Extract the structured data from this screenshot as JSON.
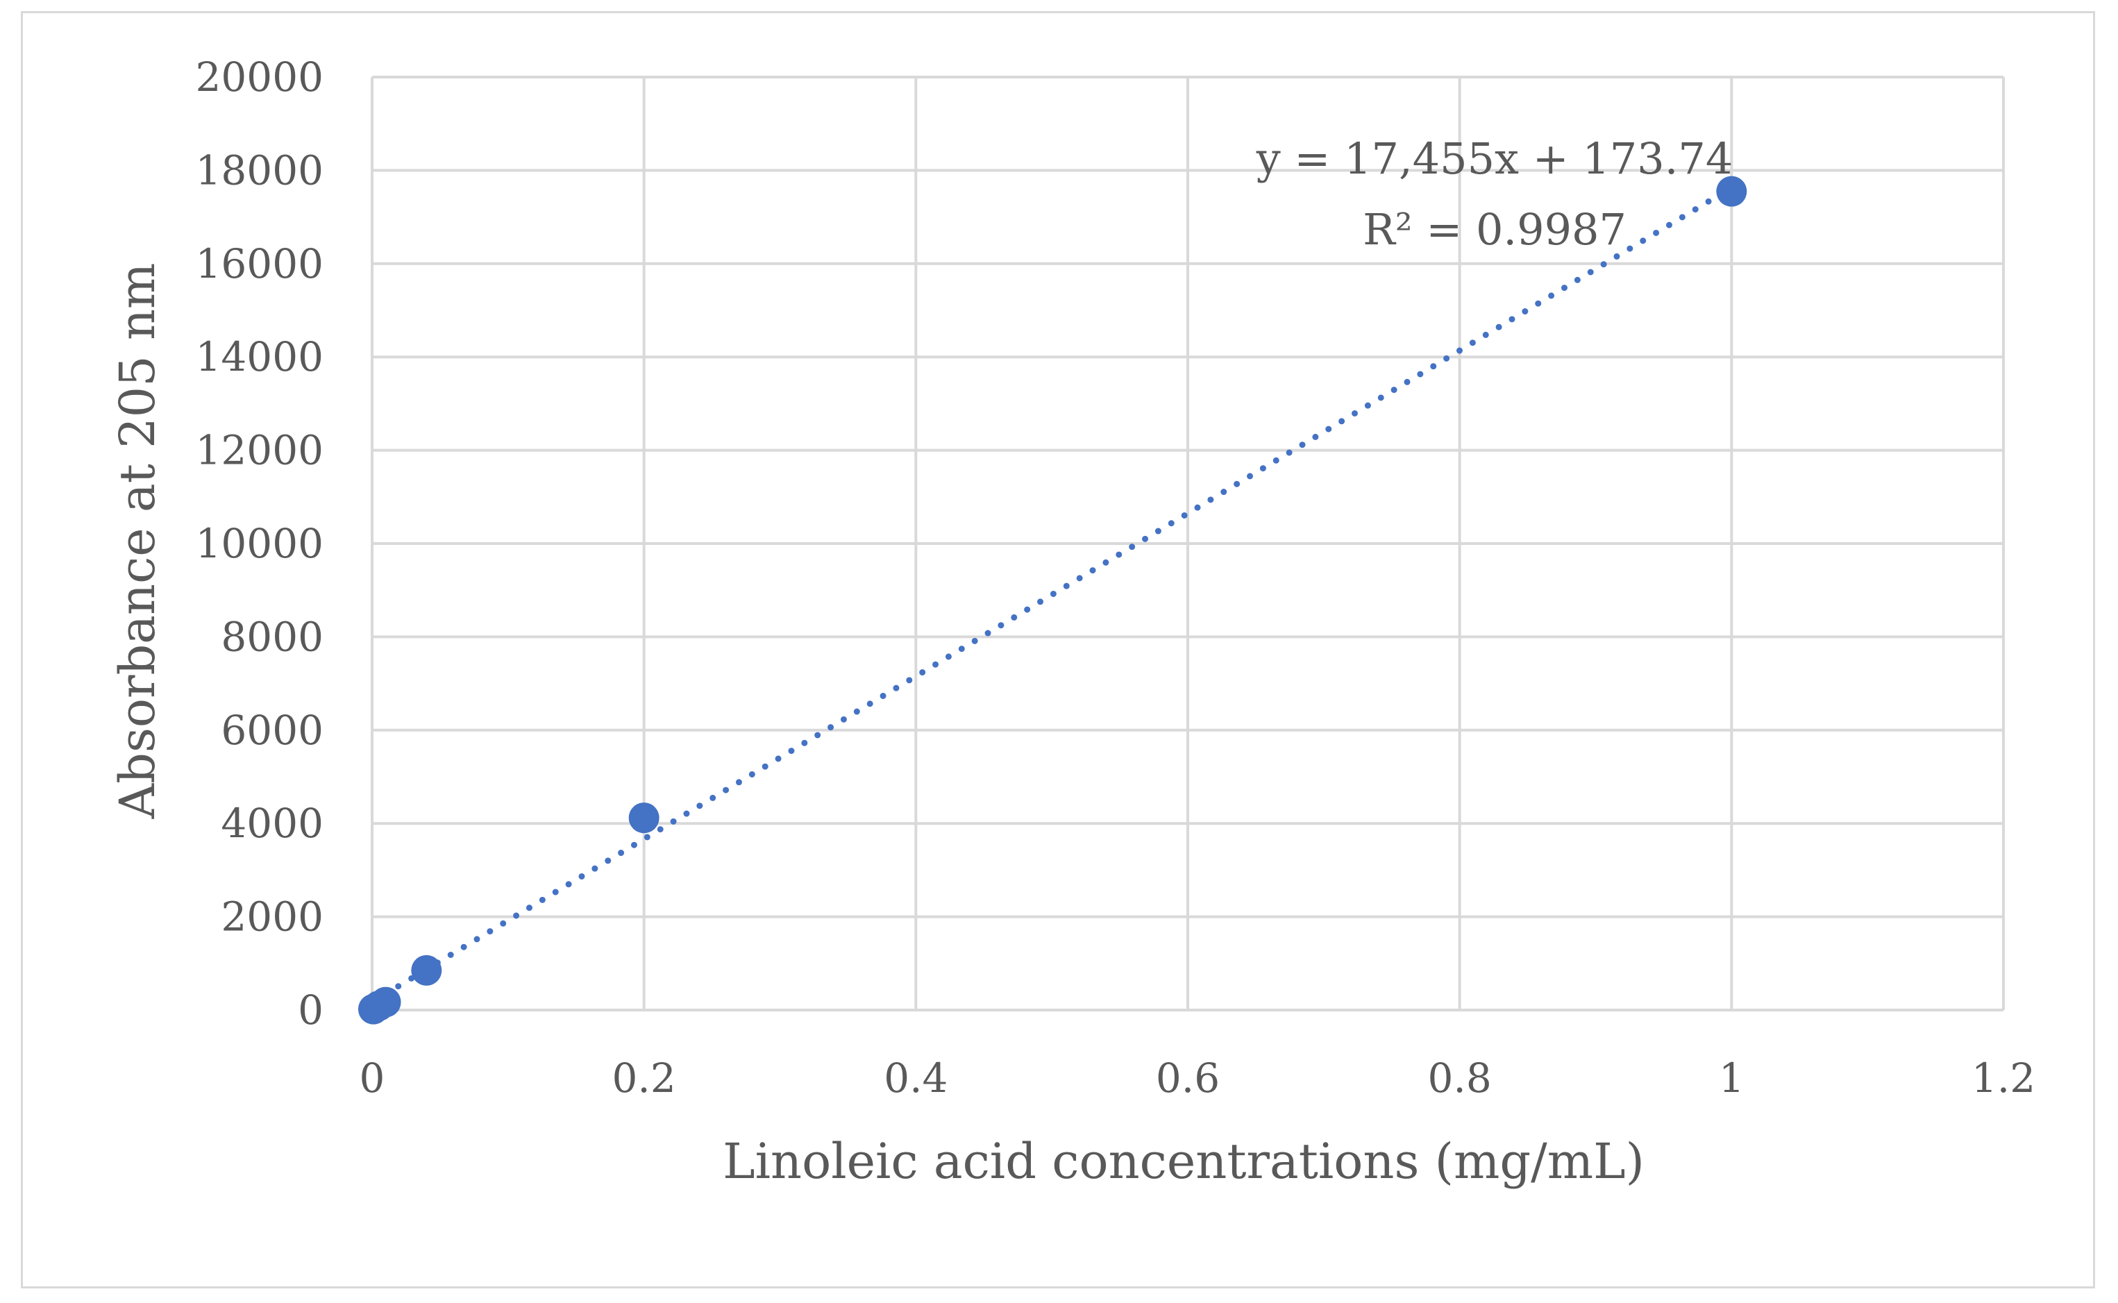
{
  "chart_data": {
    "type": "scatter",
    "title": "",
    "xlabel": "Linoleic acid concentrations (mg/mL)",
    "ylabel": "Absorbance at 205 nm",
    "xlim": [
      0,
      1.2
    ],
    "ylim": [
      0,
      20000
    ],
    "x_ticks": [
      0,
      0.2,
      0.4,
      0.6,
      0.8,
      1,
      1.2
    ],
    "x_tick_labels": [
      "0",
      "0.2",
      "0.4",
      "0.6",
      "0.8",
      "1",
      "1.2"
    ],
    "y_ticks": [
      0,
      2000,
      4000,
      6000,
      8000,
      10000,
      12000,
      14000,
      16000,
      18000,
      20000
    ],
    "y_tick_labels": [
      "0",
      "2000",
      "4000",
      "6000",
      "8000",
      "10000",
      "12000",
      "14000",
      "16000",
      "18000",
      "20000"
    ],
    "grid": true,
    "series": [
      {
        "name": "Absorbance",
        "x": [
          0.001,
          0.005,
          0.01,
          0.04,
          0.2,
          1
        ],
        "y": [
          20,
          90,
          170,
          850,
          4120,
          17550
        ],
        "color": "#4472c4"
      }
    ],
    "trendline": {
      "type": "linear",
      "slope": 17455,
      "intercept": 173.74,
      "style": "dotted",
      "color": "#4472c4",
      "x_range": [
        0,
        1
      ]
    },
    "annotations": {
      "equation": "y = 17,455x + 173.74",
      "r_squared": "R² = 0.9987"
    }
  }
}
